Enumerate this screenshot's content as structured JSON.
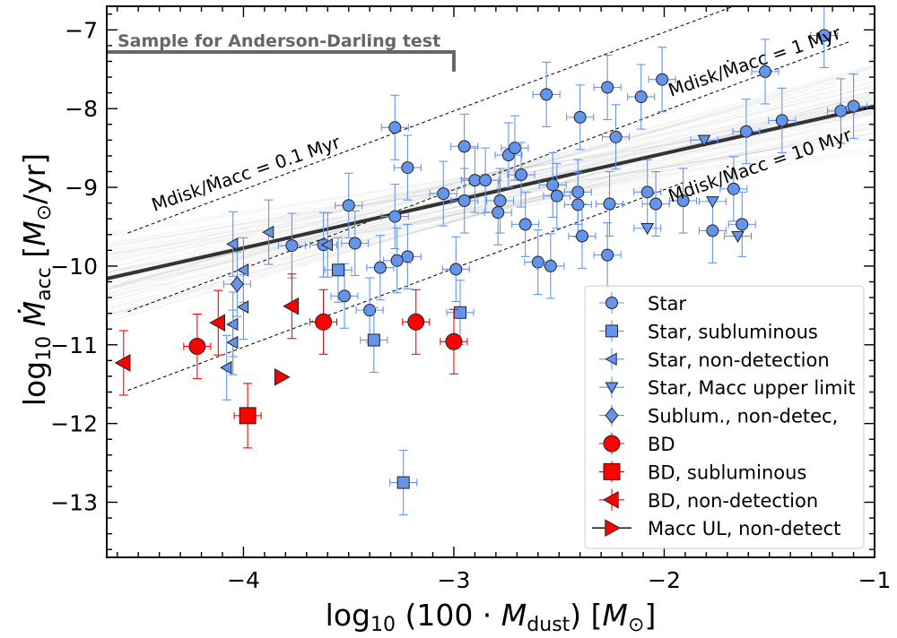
{
  "chart_data": {
    "type": "scatter",
    "xlabel": "log10 (100·Mdust) [M⊙]",
    "ylabel": "log10 Ṁacc [M⊙/yr]",
    "xlim": [
      -4.65,
      -1.0
    ],
    "ylim": [
      -13.7,
      -6.7
    ],
    "x_ticks": [
      -4,
      -3,
      -2,
      -1
    ],
    "x_tick_labels": [
      "−4",
      "−3",
      "−2",
      "−1"
    ],
    "y_ticks": [
      -13,
      -12,
      -11,
      -10,
      -9,
      -8,
      -7
    ],
    "y_tick_labels": [
      "−13",
      "−12",
      "−11",
      "−10",
      "−9",
      "−8",
      "−7"
    ],
    "annotations": {
      "sample_label": "Sample for Anderson-Darling test",
      "sample_range_x": [
        -4.65,
        -3.0
      ],
      "sample_range_y": -7.28,
      "ref_01_label": "Mdisk/Ṁacc = 0.1 Myr",
      "ref_1_label": "Mdisk/Ṁacc = 1 Myr",
      "ref_10_label": "Mdisk/Ṁacc = 10 Myr"
    },
    "reference_lines": [
      {
        "name": "0.1 Myr",
        "slope": 1.0,
        "intercept": -5.03,
        "x_range": [
          -4.55,
          -1.25
        ]
      },
      {
        "name": "1 Myr",
        "slope": 1.0,
        "intercept": -6.03,
        "x_range": [
          -4.55,
          -1.12
        ]
      },
      {
        "name": "10 Myr",
        "slope": 1.0,
        "intercept": -7.03,
        "x_range": [
          -4.55,
          -1.9
        ]
      }
    ],
    "fit_line": {
      "slope": 0.6,
      "intercept": -7.37,
      "x_range": [
        -4.65,
        -1.0
      ]
    },
    "legend": [
      {
        "label": "Star",
        "key": "star"
      },
      {
        "label": "Star, subluminous",
        "key": "star_sub"
      },
      {
        "label": "Star, non-detection",
        "key": "star_nd"
      },
      {
        "label": "Star, Macc upper limit",
        "key": "star_ul"
      },
      {
        "label": "Sublum., non-detec,",
        "key": "sub_nd"
      },
      {
        "label": "BD",
        "key": "bd"
      },
      {
        "label": "BD, subluminous",
        "key": "bd_sub"
      },
      {
        "label": "BD, non-detection",
        "key": "bd_nd"
      },
      {
        "label": "Macc UL, non-detect",
        "key": "ul_nd"
      }
    ],
    "series": [
      {
        "name": "Star",
        "key": "star",
        "marker": "circle",
        "color": "#6495ED",
        "points": [
          [
            -3.28,
            -8.24
          ],
          [
            -3.22,
            -8.75
          ],
          [
            -3.5,
            -9.23
          ],
          [
            -3.28,
            -9.37
          ],
          [
            -3.22,
            -9.88
          ],
          [
            -3.27,
            -9.93
          ],
          [
            -3.4,
            -10.56
          ],
          [
            -3.35,
            -10.02
          ],
          [
            -3.52,
            -10.38
          ],
          [
            -3.47,
            -9.71
          ],
          [
            -3.77,
            -9.74
          ],
          [
            -3.62,
            -9.73
          ],
          [
            -3.05,
            -9.08
          ],
          [
            -2.95,
            -9.17
          ],
          [
            -2.95,
            -8.48
          ],
          [
            -2.9,
            -8.91
          ],
          [
            -2.85,
            -8.91
          ],
          [
            -2.79,
            -9.32
          ],
          [
            -2.78,
            -9.17
          ],
          [
            -2.74,
            -8.59
          ],
          [
            -2.71,
            -8.5
          ],
          [
            -2.68,
            -8.84
          ],
          [
            -2.66,
            -9.47
          ],
          [
            -2.6,
            -9.95
          ],
          [
            -2.54,
            -10.0
          ],
          [
            -2.53,
            -8.97
          ],
          [
            -2.51,
            -9.11
          ],
          [
            -2.56,
            -7.82
          ],
          [
            -2.4,
            -8.11
          ],
          [
            -2.41,
            -9.06
          ],
          [
            -2.41,
            -9.22
          ],
          [
            -2.39,
            -9.62
          ],
          [
            -2.27,
            -7.73
          ],
          [
            -2.26,
            -9.21
          ],
          [
            -2.27,
            -9.86
          ],
          [
            -2.23,
            -8.36
          ],
          [
            -2.11,
            -7.85
          ],
          [
            -2.08,
            -9.06
          ],
          [
            -2.04,
            -9.21
          ],
          [
            -2.01,
            -7.63
          ],
          [
            -1.91,
            -9.17
          ],
          [
            -1.77,
            -9.55
          ],
          [
            -1.67,
            -9.02
          ],
          [
            -1.61,
            -8.29
          ],
          [
            -1.63,
            -9.47
          ],
          [
            -1.52,
            -7.53
          ],
          [
            -1.44,
            -8.15
          ],
          [
            -1.24,
            -7.07
          ],
          [
            -1.16,
            -8.03
          ],
          [
            -1.1,
            -7.97
          ],
          [
            -2.99,
            -10.04
          ]
        ]
      },
      {
        "name": "Star, subluminous",
        "key": "star_sub",
        "marker": "square",
        "color": "#6495ED",
        "points": [
          [
            -3.55,
            -10.05
          ],
          [
            -3.38,
            -10.94
          ],
          [
            -2.97,
            -10.59
          ],
          [
            -3.24,
            -12.75
          ]
        ]
      },
      {
        "name": "Star, non-detection",
        "key": "star_nd",
        "marker": "triangle-left",
        "color": "#6495ED",
        "points": [
          [
            -4.05,
            -9.72
          ],
          [
            -4.0,
            -10.05
          ],
          [
            -4.0,
            -10.52
          ],
          [
            -4.05,
            -10.74
          ],
          [
            -4.05,
            -10.97
          ],
          [
            -4.08,
            -11.29
          ],
          [
            -3.88,
            -9.57
          ],
          [
            -3.6,
            -9.73
          ]
        ]
      },
      {
        "name": "Star, Macc upper limit",
        "key": "star_ul",
        "marker": "triangle-down",
        "color": "#6495ED",
        "points": [
          [
            -1.81,
            -8.4
          ],
          [
            -1.77,
            -9.18
          ],
          [
            -1.65,
            -9.62
          ],
          [
            -2.08,
            -9.52
          ]
        ]
      },
      {
        "name": "Sublum., non-detec,",
        "key": "sub_nd",
        "marker": "diamond",
        "color": "#6495ED",
        "points": [
          [
            -4.03,
            -10.23
          ]
        ]
      },
      {
        "name": "BD",
        "key": "bd",
        "marker": "circle-big",
        "color": "#FF0000",
        "points": [
          [
            -4.22,
            -11.02
          ],
          [
            -3.62,
            -10.71
          ],
          [
            -3.18,
            -10.71
          ],
          [
            -3.0,
            -10.96
          ]
        ]
      },
      {
        "name": "BD, subluminous",
        "key": "bd_sub",
        "marker": "square-big",
        "color": "#FF0000",
        "points": [
          [
            -3.98,
            -11.9
          ]
        ]
      },
      {
        "name": "BD, non-detection",
        "key": "bd_nd",
        "marker": "triangle-left-big",
        "color": "#FF0000",
        "points": [
          [
            -4.57,
            -11.23
          ],
          [
            -3.77,
            -10.51
          ],
          [
            -4.12,
            -10.72
          ]
        ]
      },
      {
        "name": "Macc UL, non-detect",
        "key": "ul_nd",
        "marker": "triangle-right-big",
        "color": "#FF0000",
        "points": [
          [
            -3.82,
            -11.41
          ]
        ]
      }
    ]
  },
  "colors": {
    "star": "#6495ED",
    "bd": "#FF0000",
    "errbar_star": "#6495ED",
    "errbar_bd": "#FF0000",
    "fit": "#333333",
    "sample_bar": "#666666"
  }
}
